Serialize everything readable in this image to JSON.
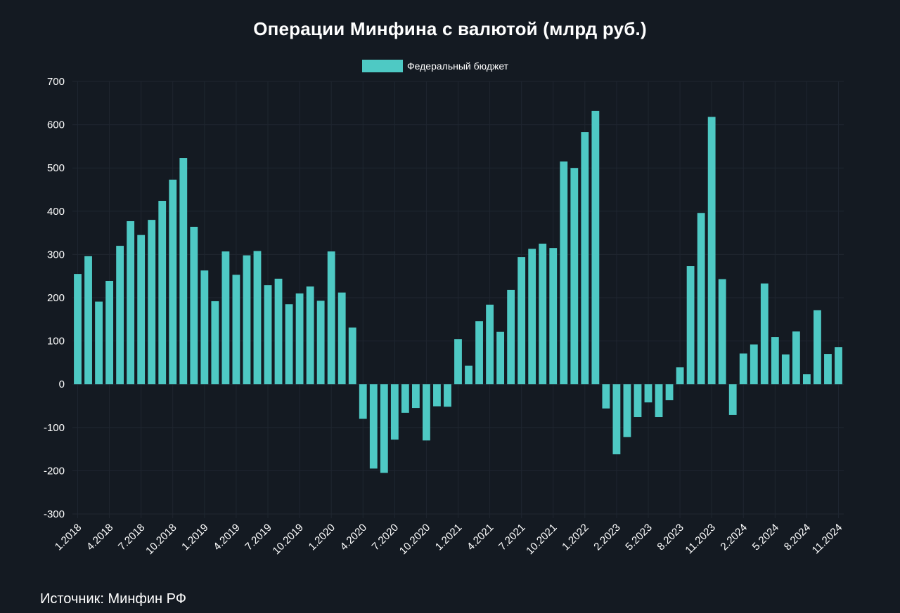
{
  "colors": {
    "background": "#141a22",
    "bar": "#4ec9c4",
    "grid": "#1f2630",
    "text": "#ffffff"
  },
  "source_note": "Источник: Минфин РФ",
  "chart_data": {
    "type": "bar",
    "title": "Операции Минфина с валютой (млрд руб.)",
    "xlabel": "",
    "ylabel": "",
    "ylim": [
      -300,
      700
    ],
    "yticks": [
      700,
      600,
      500,
      400,
      300,
      200,
      100,
      0,
      -100,
      -200,
      -300
    ],
    "legend": "top-center",
    "grid": true,
    "series": [
      {
        "name": "Федеральный бюджет",
        "color": "#4ec9c4"
      }
    ],
    "bars": [
      {
        "x": "1.2018",
        "value": 255
      },
      {
        "x": "2.2018",
        "value": 296
      },
      {
        "x": "3.2018",
        "value": 191
      },
      {
        "x": "4.2018",
        "value": 239
      },
      {
        "x": "5.2018",
        "value": 320
      },
      {
        "x": "6.2018",
        "value": 377
      },
      {
        "x": "7.2018",
        "value": 345
      },
      {
        "x": "8.2018",
        "value": 380
      },
      {
        "x": "9.2018",
        "value": 424
      },
      {
        "x": "10.2018",
        "value": 473
      },
      {
        "x": "11.2018",
        "value": 523
      },
      {
        "x": "12.2018",
        "value": 364
      },
      {
        "x": "1.2019",
        "value": 263
      },
      {
        "x": "2.2019",
        "value": 192
      },
      {
        "x": "3.2019",
        "value": 307
      },
      {
        "x": "4.2019",
        "value": 253
      },
      {
        "x": "5.2019",
        "value": 298
      },
      {
        "x": "6.2019",
        "value": 308
      },
      {
        "x": "7.2019",
        "value": 229
      },
      {
        "x": "8.2019",
        "value": 244
      },
      {
        "x": "9.2019",
        "value": 185
      },
      {
        "x": "10.2019",
        "value": 210
      },
      {
        "x": "11.2019",
        "value": 226
      },
      {
        "x": "12.2019",
        "value": 193
      },
      {
        "x": "1.2020",
        "value": 307
      },
      {
        "x": "2.2020",
        "value": 212
      },
      {
        "x": "3.2020",
        "value": 131
      },
      {
        "x": "4.2020",
        "value": -80
      },
      {
        "x": "5.2020",
        "value": -195
      },
      {
        "x": "6.2020",
        "value": -205
      },
      {
        "x": "7.2020",
        "value": -128
      },
      {
        "x": "8.2020",
        "value": -66
      },
      {
        "x": "9.2020",
        "value": -55
      },
      {
        "x": "10.2020",
        "value": -130
      },
      {
        "x": "11.2020",
        "value": -51
      },
      {
        "x": "12.2020",
        "value": -52
      },
      {
        "x": "1.2021",
        "value": 104
      },
      {
        "x": "2.2021",
        "value": 43
      },
      {
        "x": "3.2021",
        "value": 146
      },
      {
        "x": "4.2021",
        "value": 184
      },
      {
        "x": "5.2021",
        "value": 121
      },
      {
        "x": "6.2021",
        "value": 218
      },
      {
        "x": "7.2021",
        "value": 294
      },
      {
        "x": "8.2021",
        "value": 313
      },
      {
        "x": "9.2021",
        "value": 325
      },
      {
        "x": "10.2021",
        "value": 315
      },
      {
        "x": "11.2021",
        "value": 515
      },
      {
        "x": "12.2021",
        "value": 500
      },
      {
        "x": "1.2022",
        "value": 583
      },
      {
        "x": "2.2022",
        "value": 632
      },
      {
        "x": "1.2023",
        "value": -56
      },
      {
        "x": "2.2023",
        "value": -162
      },
      {
        "x": "3.2023",
        "value": -122
      },
      {
        "x": "4.2023",
        "value": -76
      },
      {
        "x": "5.2023",
        "value": -42
      },
      {
        "x": "6.2023",
        "value": -76
      },
      {
        "x": "7.2023",
        "value": -37
      },
      {
        "x": "8.2023",
        "value": 39
      },
      {
        "x": "9.2023",
        "value": 273
      },
      {
        "x": "10.2023",
        "value": 396
      },
      {
        "x": "11.2023",
        "value": 618
      },
      {
        "x": "12.2023",
        "value": 243
      },
      {
        "x": "1.2024",
        "value": -71
      },
      {
        "x": "2.2024",
        "value": 71
      },
      {
        "x": "3.2024",
        "value": 92
      },
      {
        "x": "4.2024",
        "value": 233
      },
      {
        "x": "5.2024",
        "value": 109
      },
      {
        "x": "6.2024",
        "value": 69
      },
      {
        "x": "7.2024",
        "value": 122
      },
      {
        "x": "8.2024",
        "value": 23
      },
      {
        "x": "9.2024",
        "value": 171
      },
      {
        "x": "10.2024",
        "value": 70
      },
      {
        "x": "11.2024",
        "value": 86
      }
    ],
    "xtick_labels": [
      "1.2018",
      "4.2018",
      "7.2018",
      "10.2018",
      "1.2019",
      "4.2019",
      "7.2019",
      "10.2019",
      "1.2020",
      "4.2020",
      "7.2020",
      "10.2020",
      "1.2021",
      "4.2021",
      "7.2021",
      "10.2021",
      "1.2022",
      "2.2023",
      "5.2023",
      "8.2023",
      "11.2023",
      "2.2024",
      "5.2024",
      "8.2024",
      "11.2024"
    ]
  }
}
